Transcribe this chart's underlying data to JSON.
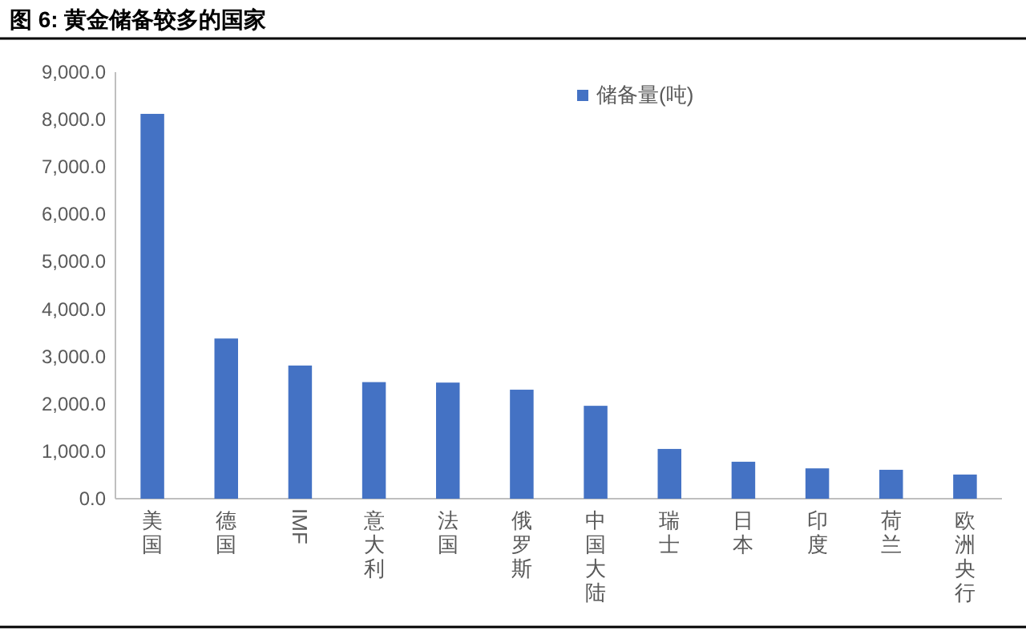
{
  "chart_data": {
    "type": "bar",
    "title": "图 6: 黄金储备较多的国家",
    "categories": [
      "美国",
      "德国",
      "IMF",
      "意大利",
      "法国",
      "俄罗斯",
      "中国大陆",
      "瑞士",
      "日本",
      "印度",
      "荷兰",
      "欧洲央行"
    ],
    "series": [
      {
        "name": "储备量(吨)",
        "color": "#4472c4",
        "values": [
          8120,
          3380,
          2810,
          2460,
          2450,
          2300,
          1960,
          1050,
          780,
          640,
          610,
          510
        ]
      }
    ],
    "ylim": [
      0,
      9000
    ],
    "yticks": [
      {
        "value": 0,
        "label": "0.0"
      },
      {
        "value": 1000,
        "label": "1,000.0"
      },
      {
        "value": 2000,
        "label": "2,000.0"
      },
      {
        "value": 3000,
        "label": "3,000.0"
      },
      {
        "value": 4000,
        "label": "4,000.0"
      },
      {
        "value": 5000,
        "label": "5,000.0"
      },
      {
        "value": 6000,
        "label": "6,000.0"
      },
      {
        "value": 7000,
        "label": "7,000.0"
      },
      {
        "value": 8000,
        "label": "8,000.0"
      },
      {
        "value": 9000,
        "label": "9,000.0"
      }
    ],
    "legend": "top",
    "grid": false
  }
}
